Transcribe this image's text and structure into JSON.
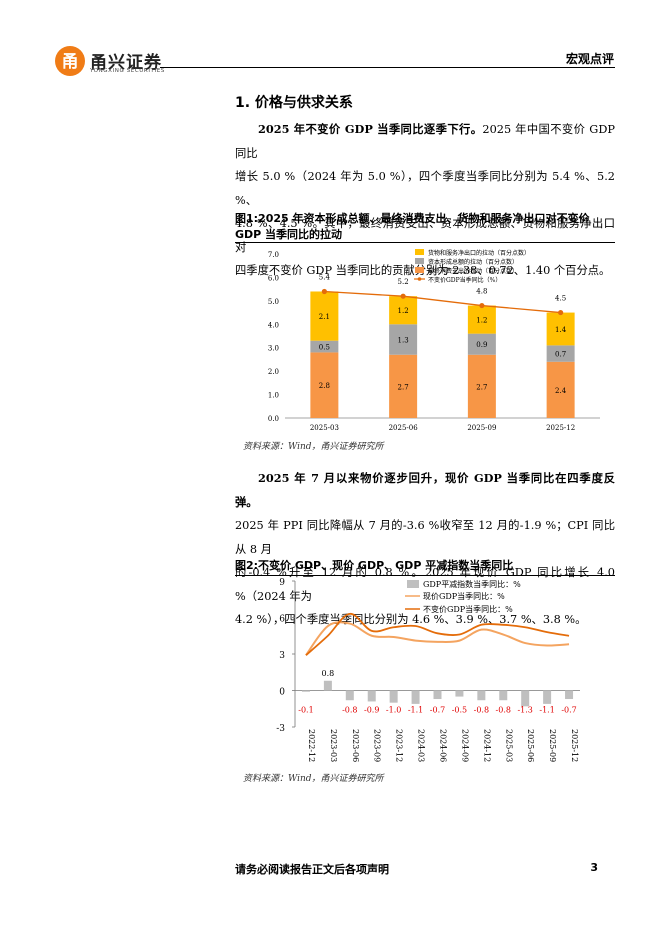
{
  "header": {
    "logo_text": "甬兴证券",
    "logo_sub": "YONGXING SECURITIES",
    "report_type": "宏观点评"
  },
  "section": {
    "title": "1. 价格与供求关系"
  },
  "para1": {
    "bold": "2025 年不变价 GDP 当季同比逐季下行。",
    "line1_rest": "2025 年中国不变价 GDP 同比",
    "line2": "增长 5.0 %（2024 年为 5.0 %），四个季度当季同比分别为 5.4 %、5.2 %、",
    "line3": "4.8 %、4.5 %。其中，最终消费支出、资本形成总额、货物和服务净出口对",
    "line4": "四季度不变价 GDP 当季同比的贡献分别为 2.38、0.72、1.40 个百分点。"
  },
  "fig1": {
    "title_line1": "图1:2025 年资本形成总额、最终消费支出、货物和服务净出口对不变价",
    "title_line2": "GDP 当季同比的拉动",
    "source": "资料来源：Wind，甬兴证券研究所"
  },
  "para2": {
    "bold": "2025 年 7 月以来物价逐步回升，现价 GDP 当季同比在四季度反弹。",
    "line2": "2025 年 PPI 同比降幅从 7 月的-3.6 %收窄至 12 月的-1.9 %；CPI 同比从 8 月",
    "line3": "的-0.4 %升至 12 月的 0.8 %。2025 年现价 GDP 同比增长 4.0 %（2024 年为",
    "line4": "4.2 %），四个季度当季同比分别为 4.6 %、3.9 %、3.7 %、3.8 %。"
  },
  "fig2": {
    "title": "图2:不变价 GDP、现价 GDP、GDP 平减指数当季同比",
    "source": "资料来源：Wind，甬兴证券研究所"
  },
  "footer": {
    "disclaimer": "请务必阅读报告正文后各项声明",
    "page": "3"
  },
  "colors": {
    "net_export": "#ffc000",
    "capital": "#a6a6a6",
    "consumption": "#f79646",
    "line": "#e46c0a",
    "deflator_label": "#e00000",
    "accent": "#f07c16"
  },
  "chart_data": [
    {
      "type": "bar",
      "stacked": true,
      "categories": [
        "2025-03",
        "2025-06",
        "2025-09",
        "2025-12"
      ],
      "series": [
        {
          "name": "最终消费支出的拉动（百分点数）",
          "values": [
            2.8,
            2.7,
            2.7,
            2.4
          ]
        },
        {
          "name": "资本形成总额的拉动（百分点数）",
          "values": [
            0.5,
            1.3,
            0.9,
            0.7
          ]
        },
        {
          "name": "货物和服务净出口的拉动（百分点数）",
          "values": [
            2.1,
            1.2,
            1.2,
            1.4
          ]
        }
      ],
      "line_series": {
        "name": "不变价GDP当季同比（%）",
        "values": [
          5.4,
          5.2,
          4.8,
          4.5
        ]
      },
      "yticks": [
        "0.0",
        "1.0",
        "2.0",
        "3.0",
        "4.0",
        "5.0",
        "6.0",
        "7.0"
      ],
      "ylim": [
        0,
        7
      ],
      "legend": "top-right"
    },
    {
      "type": "line",
      "categories": [
        "2022-12",
        "2023-03",
        "2023-06",
        "2023-09",
        "2023-12",
        "2024-03",
        "2024-06",
        "2024-09",
        "2024-12",
        "2025-03",
        "2025-06",
        "2025-09",
        "2025-12"
      ],
      "bar_series": {
        "name": "GDP平减指数当季同比：%",
        "values": [
          -0.1,
          0.8,
          -0.8,
          -0.9,
          -1.0,
          -1.1,
          -0.7,
          -0.5,
          -0.8,
          -0.8,
          -1.3,
          -1.1,
          -0.7
        ]
      },
      "series": [
        {
          "name": "现价GDP当季同比：%",
          "values": [
            2.9,
            5.3,
            5.5,
            4.5,
            4.4,
            4.1,
            4.0,
            4.1,
            5.0,
            4.6,
            3.9,
            3.7,
            3.8
          ]
        },
        {
          "name": "不变价GDP当季同比：%",
          "values": [
            2.9,
            4.5,
            6.3,
            4.9,
            5.2,
            5.3,
            4.7,
            4.6,
            5.4,
            5.4,
            5.2,
            4.8,
            4.5
          ]
        }
      ],
      "yticks": [
        "-3",
        "0",
        "3",
        "6",
        "9"
      ],
      "ylim": [
        -3,
        9
      ],
      "legend": "top-right"
    }
  ]
}
